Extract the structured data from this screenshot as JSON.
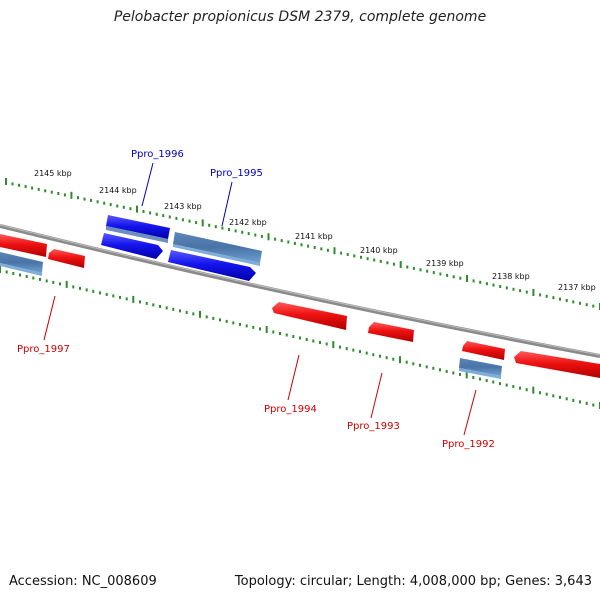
{
  "title": "Pelobacter propionicus DSM 2379, complete genome",
  "footer": {
    "accession": "Accession: NC_008609",
    "summary": "Topology: circular; Length: 4,008,000 bp; Genes: 3,643"
  },
  "colors": {
    "genome_line": "#8a8a8a",
    "scale_ticks": "#2e8b2e",
    "forward_gene": "#ee1111",
    "reverse_gene": "#1515ee",
    "selected_gene": "#4a7ab0",
    "forward_label": "#cc0000",
    "reverse_label": "#0000bb"
  },
  "scale": {
    "upper_labels": [
      "2145 kbp",
      "2144 kbp",
      "2143 kbp",
      "2142 kbp",
      "2141 kbp",
      "2140 kbp",
      "2139 kbp",
      "2138 kbp",
      "2137 kbp"
    ]
  },
  "genes": [
    {
      "label": "Ppro_1996",
      "color": "reverse_label"
    },
    {
      "label": "Ppro_1995",
      "color": "reverse_label"
    },
    {
      "label": "Ppro_1997",
      "color": "forward_label"
    },
    {
      "label": "Ppro_1994",
      "color": "forward_label"
    },
    {
      "label": "Ppro_1993",
      "color": "forward_label"
    },
    {
      "label": "Ppro_1992",
      "color": "forward_label"
    }
  ]
}
